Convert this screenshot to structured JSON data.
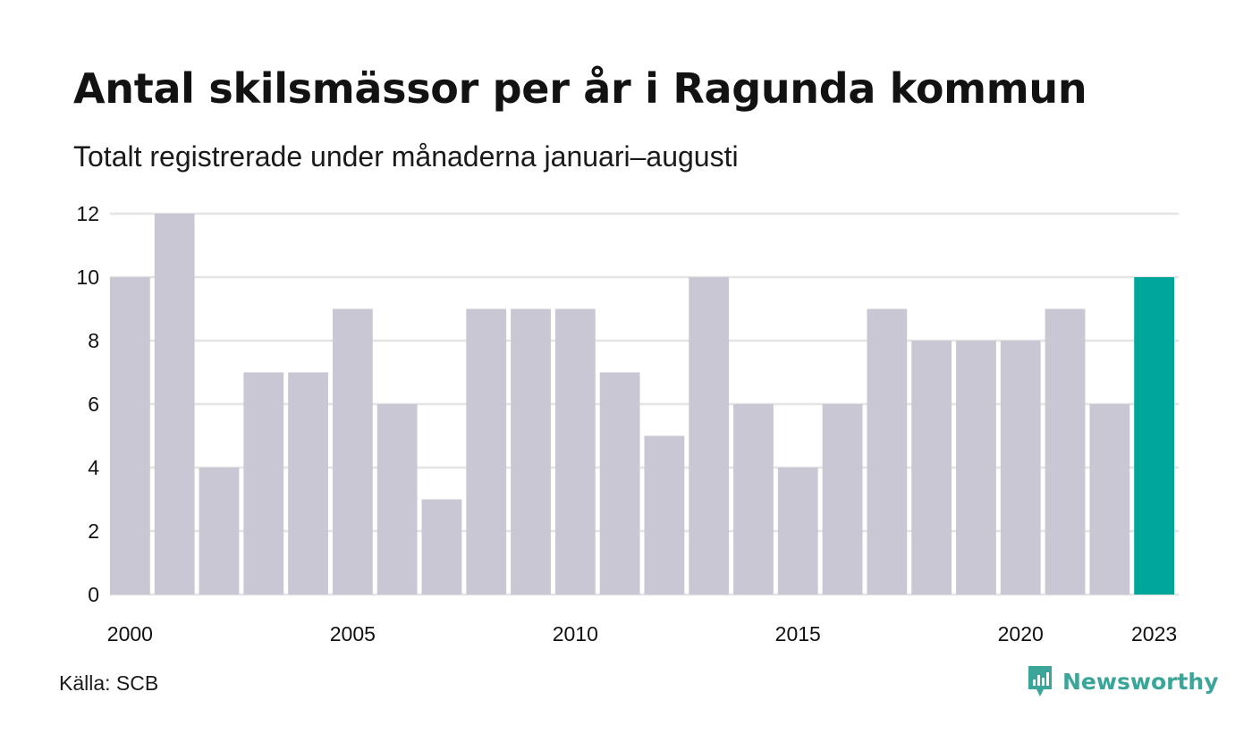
{
  "chart_data": {
    "type": "bar",
    "title": "Antal skilsmässor per år i Ragunda kommun",
    "subtitle": "Totalt registrerade under månaderna januari–augusti",
    "categories": [
      "2000",
      "2001",
      "2002",
      "2003",
      "2004",
      "2005",
      "2006",
      "2007",
      "2008",
      "2009",
      "2010",
      "2011",
      "2012",
      "2013",
      "2014",
      "2015",
      "2016",
      "2017",
      "2018",
      "2019",
      "2020",
      "2021",
      "2022",
      "2023"
    ],
    "values": [
      10,
      12,
      4,
      7,
      7,
      9,
      6,
      3,
      9,
      9,
      9,
      7,
      5,
      10,
      6,
      4,
      6,
      9,
      8,
      8,
      8,
      9,
      6,
      10
    ],
    "x_tick_labels": [
      "2000",
      "2005",
      "2010",
      "2015",
      "2020",
      "2023"
    ],
    "y_ticks": [
      0,
      2,
      4,
      6,
      8,
      10,
      12
    ],
    "ylim": [
      0,
      12
    ],
    "xlabel": "",
    "ylabel": "",
    "grid": true,
    "legend": "none",
    "colors": {
      "bar": "#c8c7d3",
      "highlight": "#00a69a",
      "grid": "#e4e4e4",
      "text": "#111111"
    },
    "highlight_category": "2023"
  },
  "footer": {
    "source": "Källa: SCB",
    "brand": "Newsworthy",
    "brand_icon": "newsworthy-logo-icon",
    "brand_color": "#3aa598"
  }
}
